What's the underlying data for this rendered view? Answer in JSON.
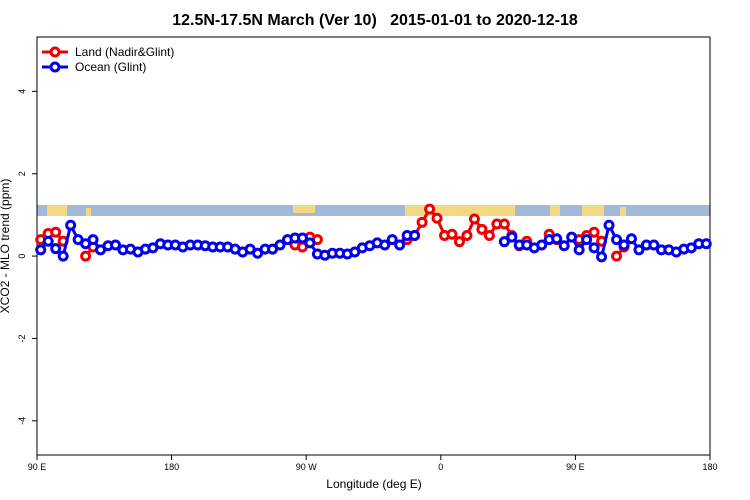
{
  "chart_data": {
    "type": "line",
    "title": "12.5N-17.5N March (Ver 10)   2015-01-01 to 2020-12-18",
    "x_label": "Longitude (deg E)",
    "y_label": "XCO2 - MLO trend (ppm)",
    "x": [
      92.5,
      97.5,
      102.5,
      107.5,
      112.5,
      117.5,
      122.5,
      127.5,
      132.5,
      137.5,
      142.5,
      147.5,
      152.5,
      157.5,
      162.5,
      167.5,
      172.5,
      177.5,
      182.5,
      187.5,
      192.5,
      197.5,
      202.5,
      207.5,
      212.5,
      217.5,
      222.5,
      227.5,
      232.5,
      237.5,
      242.5,
      247.5,
      252.5,
      257.5,
      262.5,
      267.5,
      272.5,
      277.5,
      282.5,
      287.5,
      292.5,
      297.5,
      302.5,
      307.5,
      312.5,
      317.5,
      322.5,
      327.5,
      332.5,
      337.5,
      342.5,
      347.5,
      352.5,
      357.5,
      362.5,
      367.5,
      372.5,
      377.5,
      382.5,
      387.5,
      392.5,
      397.5,
      402.5,
      407.5,
      412.5,
      417.5,
      422.5,
      427.5,
      432.5,
      437.5,
      442.5,
      447.5,
      452.5,
      457.5,
      462.5,
      467.5,
      472.5,
      477.5,
      482.5,
      487.5,
      492.5,
      497.5,
      502.5,
      507.5,
      512.5,
      517.5,
      522.5,
      527.5,
      532.5,
      537.5
    ],
    "series": [
      {
        "name": "Land (Nadir&Glint)",
        "color": "#ee0000",
        "values": [
          0.4,
          0.55,
          0.58,
          0.36,
          null,
          null,
          0.0,
          0.22,
          null,
          null,
          null,
          null,
          null,
          null,
          null,
          null,
          null,
          null,
          null,
          null,
          null,
          null,
          null,
          null,
          null,
          null,
          null,
          null,
          null,
          null,
          null,
          null,
          null,
          null,
          0.27,
          0.22,
          0.46,
          0.4,
          null,
          null,
          null,
          null,
          null,
          null,
          null,
          null,
          null,
          null,
          null,
          0.4,
          0.5,
          0.82,
          1.14,
          0.92,
          0.5,
          0.53,
          0.35,
          0.5,
          0.9,
          0.65,
          0.5,
          0.78,
          0.78,
          0.5,
          0.25,
          0.36,
          null,
          null,
          0.53,
          0.4,
          null,
          null,
          0.4,
          0.5,
          0.58,
          0.36,
          null,
          0.0,
          0.22,
          null,
          null,
          null,
          null,
          null,
          null,
          null,
          null,
          null,
          null,
          null
        ]
      },
      {
        "name": "Ocean (Glint)",
        "color": "#0000ee",
        "values": [
          0.15,
          0.36,
          0.18,
          0.0,
          0.75,
          0.4,
          0.3,
          0.4,
          0.15,
          0.25,
          0.27,
          0.15,
          0.17,
          0.1,
          0.17,
          0.2,
          0.3,
          0.27,
          0.27,
          0.22,
          0.27,
          0.27,
          0.25,
          0.22,
          0.22,
          0.22,
          0.17,
          0.1,
          0.17,
          0.07,
          0.17,
          0.17,
          0.27,
          0.4,
          0.44,
          0.44,
          0.32,
          0.05,
          0.02,
          0.07,
          0.07,
          0.05,
          0.1,
          0.2,
          0.25,
          0.32,
          0.27,
          0.4,
          0.27,
          0.5,
          0.5,
          null,
          null,
          null,
          null,
          null,
          null,
          null,
          null,
          null,
          null,
          null,
          0.35,
          0.46,
          0.27,
          0.27,
          0.2,
          0.27,
          0.4,
          0.42,
          0.25,
          0.46,
          0.15,
          0.4,
          0.2,
          -0.02,
          0.75,
          0.4,
          0.27,
          0.42,
          0.15,
          0.27,
          0.27,
          0.15,
          0.15,
          0.1,
          0.17,
          0.2,
          0.3,
          0.3
        ]
      }
    ],
    "xlim": [
      90,
      540
    ],
    "xticks": [
      {
        "value": 90,
        "label": "90 E"
      },
      180,
      {
        "value": 270,
        "label": "90 W"
      },
      {
        "value": 360,
        "label": "0"
      },
      {
        "value": 450,
        "label": "90 E"
      },
      {
        "value": 540,
        "label": "180"
      }
    ],
    "ylim": [
      -4.83,
      5.32
    ],
    "yticks": [
      -4,
      -2,
      0,
      2,
      4
    ],
    "legend": "top-left"
  }
}
